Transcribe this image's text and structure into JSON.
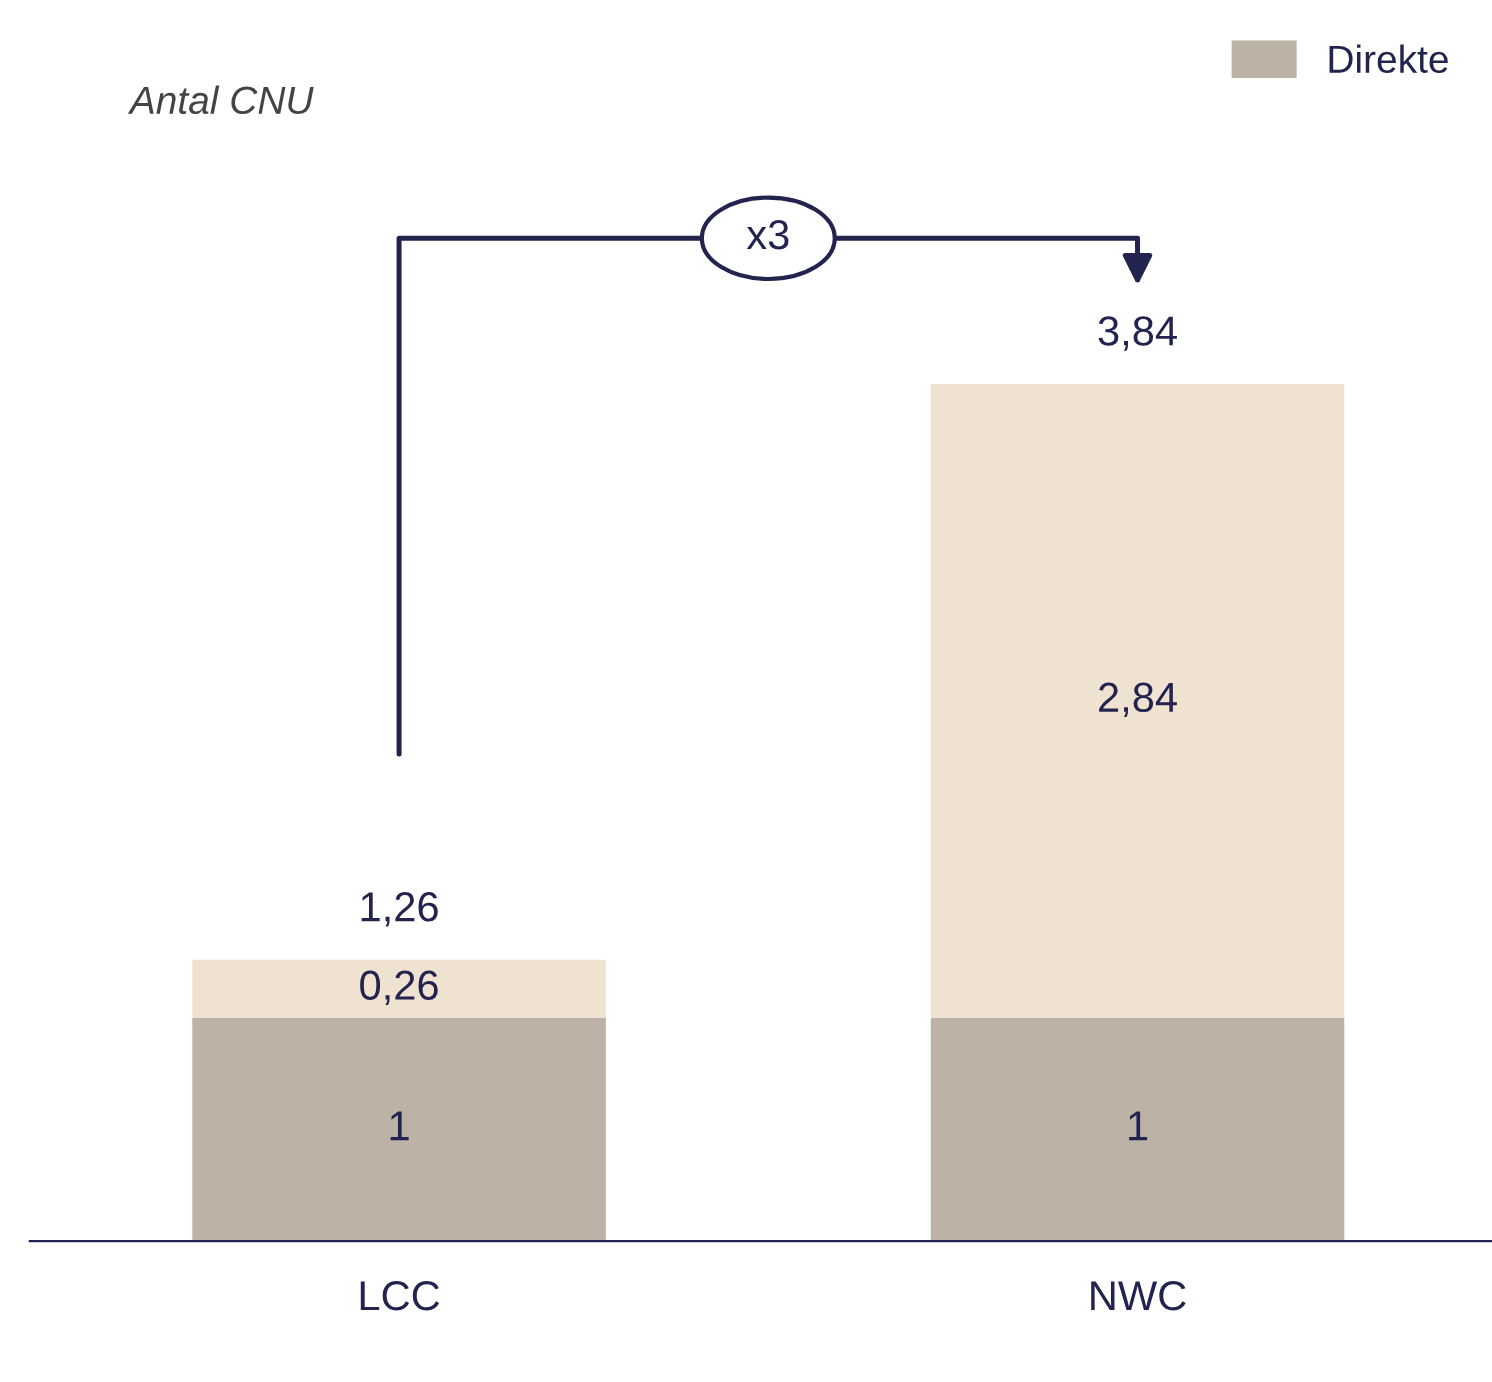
{
  "chart_data": {
    "type": "bar",
    "stacked": true,
    "subtitle": "Antal CNU",
    "categories": [
      "LCC",
      "NWC"
    ],
    "series": [
      {
        "name": "Direkte",
        "color": "#bcb2a5",
        "values": [
          1,
          1
        ],
        "value_labels": [
          "1",
          "1"
        ]
      },
      {
        "color": "#efe2d0",
        "values": [
          0.26,
          2.84
        ],
        "value_labels": [
          "0,26",
          "2,84"
        ]
      }
    ],
    "totals": [
      "1,26",
      "3,84"
    ],
    "annotations": [
      "x3"
    ],
    "legend": "top right",
    "grid": false
  }
}
